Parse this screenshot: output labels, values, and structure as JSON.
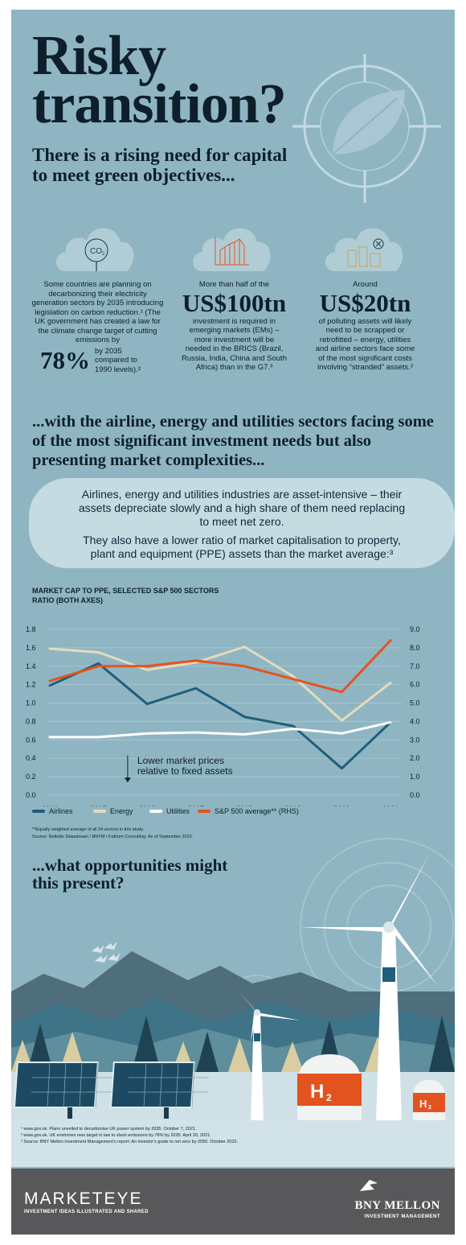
{
  "header": {
    "title": "Risky transition?",
    "subtitle": "There is a rising need for capital to meet green objectives..."
  },
  "stats": {
    "left": {
      "icon": "co2-tree-icon",
      "text_before": "Some countries are planning on decarbonizing their electricity generation sectors by 2035 introducing legislation on carbon reduction.¹ (The UK government has created a law for the climate change target of cutting emissions by",
      "big": "78%",
      "text_after": "by 2035 compared to 1990 levels).²"
    },
    "middle": {
      "icon": "growth-chart-icon",
      "text_before": "More than half of the",
      "big": "US$100tn",
      "text_after": "investment is required in emerging markets (EMs) – more investment will be needed in the BRICS (Brazil, Russia, India, China and South Africa) than in the G7.³"
    },
    "right": {
      "icon": "factory-icon",
      "text_before": "Around",
      "big": "US$20tn",
      "text_after": "of polluting assets will likely need to be scrapped or retrofitted – energy, utilities and airline sectors face some of the most significant costs involving “stranded” assets.³"
    }
  },
  "section2": {
    "heading": "...with the airline, energy and utilities sectors facing some of the most significant investment needs but also presenting market complexities...",
    "callout_p1": "Airlines, energy and utilities industries are asset-intensive – their assets depreciate slowly and a high share of them need replacing to meet net zero.",
    "callout_p2": "They also have a lower ratio of market capitalisation to property, plant and equipment (PPE) assets than the market average:³"
  },
  "chart_data": {
    "type": "line",
    "title": "MARKET CAP TO PPE, SELECTED S&P 500 SECTORS",
    "subtitle": "RATIO (BOTH AXES)",
    "x": [
      "2014",
      "2015",
      "2016",
      "2017",
      "2018",
      "2019",
      "2020",
      "2021"
    ],
    "y_left_ticks": [
      "0.0",
      "0.2",
      "0.4",
      "0.6",
      "0.8",
      "1.0",
      "1.2",
      "1.4",
      "1.6",
      "1.8"
    ],
    "y_right_ticks": [
      "0.0",
      "1.0",
      "2.0",
      "3.0",
      "4.0",
      "5.0",
      "6.0",
      "7.0",
      "8.0",
      "9.0"
    ],
    "ylim_left": [
      0,
      1.8
    ],
    "ylim_right": [
      0,
      9.0
    ],
    "grid": true,
    "legend_position": "bottom",
    "series": [
      {
        "name": "Airlines",
        "axis": "left",
        "color": "#1d5f7a",
        "values": [
          1.19,
          1.43,
          0.99,
          1.16,
          0.85,
          0.75,
          0.29,
          0.79
        ]
      },
      {
        "name": "Energy",
        "axis": "left",
        "color": "#e4dbbb",
        "values": [
          1.59,
          1.55,
          1.36,
          1.44,
          1.61,
          1.29,
          0.81,
          1.22
        ]
      },
      {
        "name": "Utilities",
        "axis": "left",
        "color": "#ffffff",
        "values": [
          0.63,
          0.63,
          0.67,
          0.68,
          0.66,
          0.72,
          0.67,
          0.79
        ]
      },
      {
        "name": "S&P 500 average** (RHS)",
        "axis": "right",
        "color": "#e3531f",
        "values": [
          6.2,
          7.0,
          7.0,
          7.3,
          7.0,
          6.3,
          5.6,
          8.4
        ]
      }
    ],
    "annotation": "Lower market prices relative to fixed assets"
  },
  "chart_notes": {
    "note1": "**Equally weighted average of all 24 sectors in this study.",
    "note2": "Source: Refinitiv Datastream / BNYM / Fathom Consulting. As of September 2022."
  },
  "section3": {
    "heading": "...what opportunities might this present?",
    "h2_label": "H",
    "h2_sub": "2"
  },
  "footnotes": {
    "f1": "¹ www.gov.uk. Plans unveiled to decarbonise UK power system by 2035. October 7, 2021.",
    "f2": "² www.gov.uk. UK enshrines new target in law to slash emissions by 78% by 2035. April 20, 2021.",
    "f3": "³ Source: BNY Mellon Investment Management's report: An investor's guide to net zero by 2050. October 2022."
  },
  "footer": {
    "brand": "MARKETEYE",
    "tagline": "INVESTMENT IDEAS ILLUSTRATED AND SHARED",
    "company": "BNY MELLON",
    "company_sub": "INVESTMENT MANAGEMENT"
  },
  "colors": {
    "background": "#8fb5c3",
    "airlines": "#1d5f7a",
    "energy": "#e4dbbb",
    "utilities": "#ffffff",
    "sp500": "#e3531f",
    "accent_orange": "#e3531f",
    "footer": "#58585a"
  }
}
